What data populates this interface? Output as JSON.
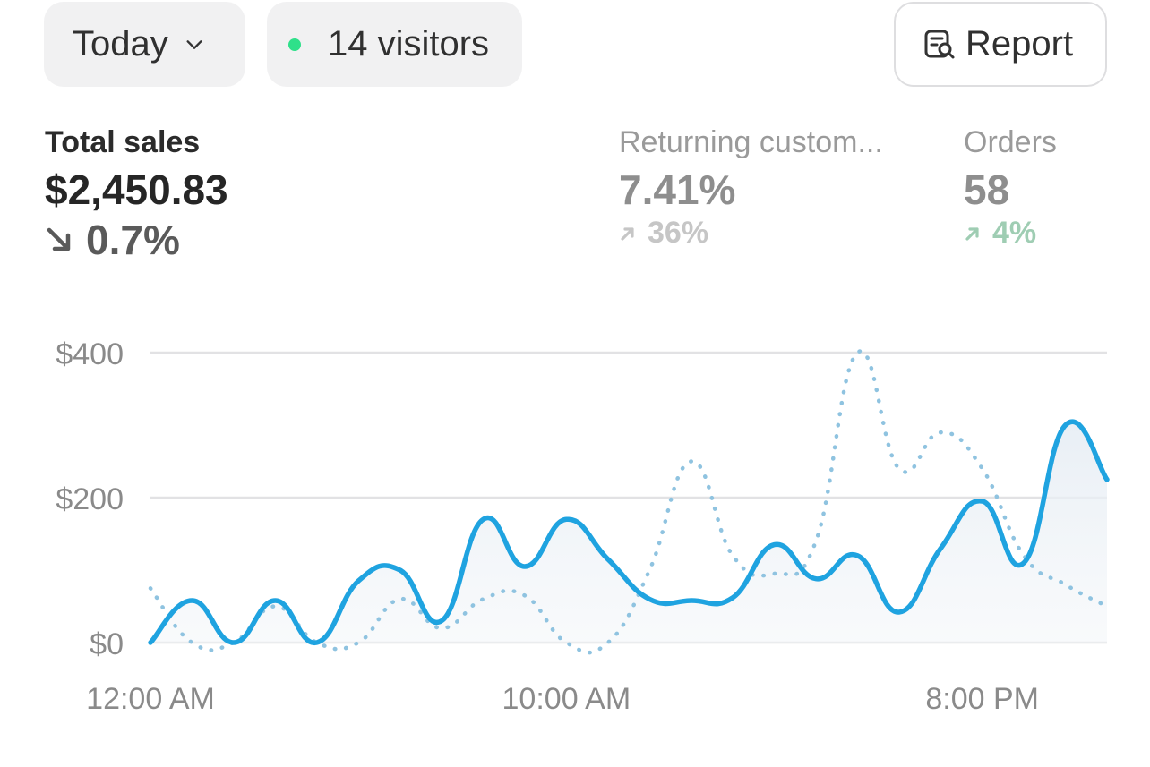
{
  "toolbar": {
    "range_label": "Today",
    "visitors_label": "14 visitors",
    "report_label": "Report"
  },
  "metrics": {
    "total_sales": {
      "label": "Total sales",
      "value": "$2,450.83",
      "change": "0.7%",
      "direction": "down"
    },
    "returning": {
      "label": "Returning custom...",
      "value": "7.41%",
      "change": "36%",
      "direction": "up"
    },
    "orders": {
      "label": "Orders",
      "value": "58",
      "change": "4%",
      "direction": "up"
    }
  },
  "colors": {
    "accent": "#1fa3e0",
    "comparison": "#8fc3e0",
    "live_dot": "#2fe08a",
    "positive": "#9fcdb3"
  },
  "chart_data": {
    "type": "line",
    "y_ticks": [
      "$400",
      "$200",
      "$0"
    ],
    "x_ticks": [
      "12:00 AM",
      "10:00 AM",
      "8:00 PM"
    ],
    "ylim": [
      0,
      400
    ],
    "x": [
      0,
      1,
      2,
      3,
      4,
      5,
      6,
      7,
      8,
      9,
      10,
      11,
      12,
      13,
      14,
      15,
      16,
      17,
      18,
      19,
      20,
      21,
      22,
      23
    ],
    "series": [
      {
        "style": "solid",
        "values": [
          0,
          58,
          0,
          58,
          0,
          85,
          100,
          30,
          170,
          105,
          170,
          115,
          60,
          58,
          62,
          135,
          88,
          120,
          42,
          130,
          195,
          110,
          300,
          225
        ]
      },
      {
        "style": "dotted",
        "values": [
          75,
          0,
          0,
          50,
          0,
          0,
          60,
          20,
          60,
          65,
          0,
          0,
          100,
          250,
          120,
          95,
          140,
          400,
          240,
          290,
          240,
          120,
          80,
          50
        ]
      }
    ]
  }
}
